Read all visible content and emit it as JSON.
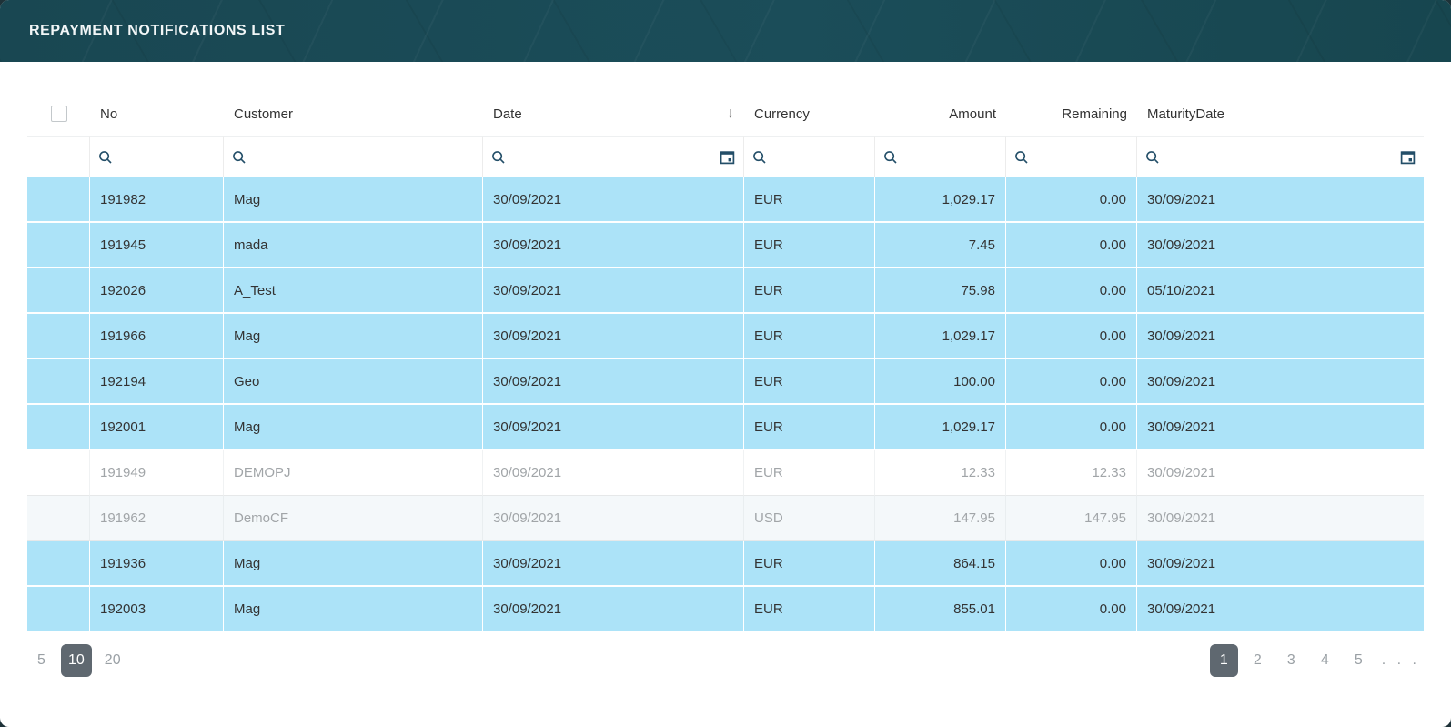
{
  "header": {
    "title": "REPAYMENT NOTIFICATIONS LIST"
  },
  "theme": {
    "header_bg": "#1b4d59",
    "selected_row_bg": "#ace3f8",
    "alt_muted_row_bg": "#f4f8fa",
    "chip_selected_bg": "#5f6870",
    "icon_color": "#234e68",
    "text_color": "#333333",
    "muted_text_color": "#a1a5a8"
  },
  "table": {
    "columns": [
      {
        "key": "select",
        "label": ""
      },
      {
        "key": "no",
        "label": "No"
      },
      {
        "key": "customer",
        "label": "Customer"
      },
      {
        "key": "date",
        "label": "Date",
        "sorted": "desc",
        "has_calendar_filter": true
      },
      {
        "key": "currency",
        "label": "Currency"
      },
      {
        "key": "amount",
        "label": "Amount",
        "align": "right"
      },
      {
        "key": "remaining",
        "label": "Remaining",
        "align": "right"
      },
      {
        "key": "maturityDate",
        "label": "MaturityDate",
        "has_calendar_filter": true
      }
    ],
    "sort_indicator": "↓",
    "filter_placeholders": {
      "no": "",
      "customer": "",
      "date": "",
      "currency": "",
      "amount": "",
      "remaining": "",
      "maturityDate": ""
    },
    "rows": [
      {
        "no": "191982",
        "customer": "Mag",
        "date": "30/09/2021",
        "currency": "EUR",
        "amount": "1,029.17",
        "remaining": "0.00",
        "maturityDate": "30/09/2021",
        "state": "selected"
      },
      {
        "no": "191945",
        "customer": "mada",
        "date": "30/09/2021",
        "currency": "EUR",
        "amount": "7.45",
        "remaining": "0.00",
        "maturityDate": "30/09/2021",
        "state": "selected"
      },
      {
        "no": "192026",
        "customer": "A_Test",
        "date": "30/09/2021",
        "currency": "EUR",
        "amount": "75.98",
        "remaining": "0.00",
        "maturityDate": "05/10/2021",
        "state": "selected"
      },
      {
        "no": "191966",
        "customer": "Mag",
        "date": "30/09/2021",
        "currency": "EUR",
        "amount": "1,029.17",
        "remaining": "0.00",
        "maturityDate": "30/09/2021",
        "state": "selected"
      },
      {
        "no": "192194",
        "customer": "Geo",
        "date": "30/09/2021",
        "currency": "EUR",
        "amount": "100.00",
        "remaining": "0.00",
        "maturityDate": "30/09/2021",
        "state": "selected"
      },
      {
        "no": "192001",
        "customer": "Mag",
        "date": "30/09/2021",
        "currency": "EUR",
        "amount": "1,029.17",
        "remaining": "0.00",
        "maturityDate": "30/09/2021",
        "state": "selected"
      },
      {
        "no": "191949",
        "customer": "DEMOPJ",
        "date": "30/09/2021",
        "currency": "EUR",
        "amount": "12.33",
        "remaining": "12.33",
        "maturityDate": "30/09/2021",
        "state": "plain"
      },
      {
        "no": "191962",
        "customer": "DemoCF",
        "date": "30/09/2021",
        "currency": "USD",
        "amount": "147.95",
        "remaining": "147.95",
        "maturityDate": "30/09/2021",
        "state": "alt"
      },
      {
        "no": "191936",
        "customer": "Mag",
        "date": "30/09/2021",
        "currency": "EUR",
        "amount": "864.15",
        "remaining": "0.00",
        "maturityDate": "30/09/2021",
        "state": "selected"
      },
      {
        "no": "192003",
        "customer": "Mag",
        "date": "30/09/2021",
        "currency": "EUR",
        "amount": "855.01",
        "remaining": "0.00",
        "maturityDate": "30/09/2021",
        "state": "selected"
      }
    ]
  },
  "pagination": {
    "page_sizes": [
      "5",
      "10",
      "20"
    ],
    "selected_page_size": "10",
    "pages": [
      "1",
      "2",
      "3",
      "4",
      "5"
    ],
    "selected_page": "1",
    "ellipsis": ". . ."
  }
}
